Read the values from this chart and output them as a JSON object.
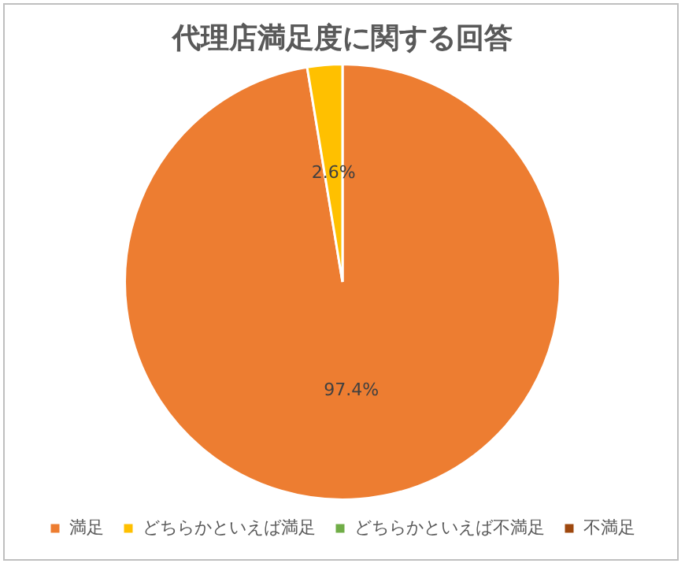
{
  "chart_data": {
    "type": "pie",
    "title": "代理店満足度に関する回答",
    "categories": [
      "満足",
      "どちらかといえば満足",
      "どちらかといえば不満足",
      "不満足"
    ],
    "values": [
      97.4,
      2.6,
      0,
      0
    ],
    "colors": [
      "#ed7d31",
      "#ffc000",
      "#70ad47",
      "#9e480e"
    ],
    "value_labels": [
      "97.4%",
      "2.6%",
      null,
      null
    ],
    "legend": "bottom"
  }
}
